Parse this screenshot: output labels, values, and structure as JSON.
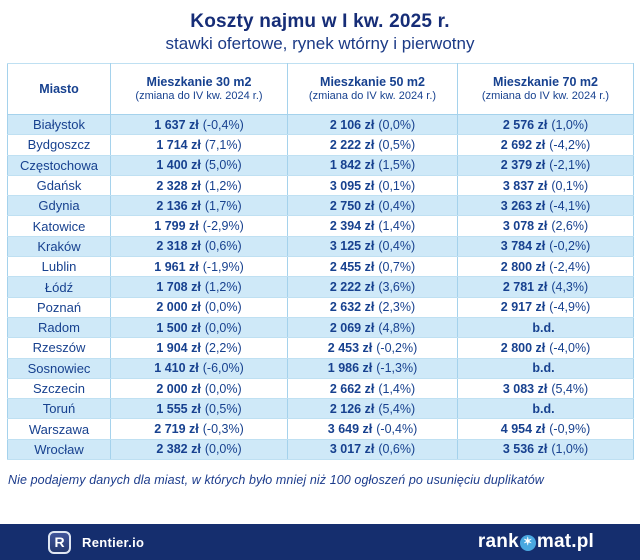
{
  "header": {
    "title": "Koszty najmu w I kw. 2025 r.",
    "subtitle": "stawki ofertowe, rynek wtórny i pierwotny"
  },
  "chart_data": {
    "type": "table",
    "title": "Koszty najmu w I kw. 2025 r.",
    "subtitle": "stawki ofertowe, rynek wtórny i pierwotny",
    "columns": [
      {
        "label": "Miasto",
        "sublabel": ""
      },
      {
        "label": "Mieszkanie 30 m2",
        "sublabel": "(zmiana do IV kw. 2024 r.)"
      },
      {
        "label": "Mieszkanie 50 m2",
        "sublabel": "(zmiana do IV kw. 2024 r.)"
      },
      {
        "label": "Mieszkanie 70 m2",
        "sublabel": "(zmiana do IV kw. 2024 r.)"
      }
    ],
    "no_data_label": "b.d.",
    "rows": [
      {
        "city": "Białystok",
        "cells": [
          {
            "price": "1 637 zł",
            "change": "(-0,4%)"
          },
          {
            "price": "2 106 zł",
            "change": "(0,0%)"
          },
          {
            "price": "2 576 zł",
            "change": "(1,0%)"
          }
        ]
      },
      {
        "city": "Bydgoszcz",
        "cells": [
          {
            "price": "1 714 zł",
            "change": "(7,1%)"
          },
          {
            "price": "2 222 zł",
            "change": "(0,5%)"
          },
          {
            "price": "2 692 zł",
            "change": "(-4,2%)"
          }
        ]
      },
      {
        "city": "Częstochowa",
        "cells": [
          {
            "price": "1 400 zł",
            "change": "(5,0%)"
          },
          {
            "price": "1 842 zł",
            "change": "(1,5%)"
          },
          {
            "price": "2 379 zł",
            "change": "(-2,1%)"
          }
        ]
      },
      {
        "city": "Gdańsk",
        "cells": [
          {
            "price": "2 328 zł",
            "change": "(1,2%)"
          },
          {
            "price": "3 095 zł",
            "change": "(0,1%)"
          },
          {
            "price": "3 837 zł",
            "change": "(0,1%)"
          }
        ]
      },
      {
        "city": "Gdynia",
        "cells": [
          {
            "price": "2 136 zł",
            "change": "(1,7%)"
          },
          {
            "price": "2 750 zł",
            "change": "(0,4%)"
          },
          {
            "price": "3 263 zł",
            "change": "(-4,1%)"
          }
        ]
      },
      {
        "city": "Katowice",
        "cells": [
          {
            "price": "1 799 zł",
            "change": "(-2,9%)"
          },
          {
            "price": "2 394 zł",
            "change": "(1,4%)"
          },
          {
            "price": "3 078 zł",
            "change": "(2,6%)"
          }
        ]
      },
      {
        "city": "Kraków",
        "cells": [
          {
            "price": "2 318 zł",
            "change": "(0,6%)"
          },
          {
            "price": "3 125 zł",
            "change": "(0,4%)"
          },
          {
            "price": "3 784 zł",
            "change": "(-0,2%)"
          }
        ]
      },
      {
        "city": "Lublin",
        "cells": [
          {
            "price": "1 961 zł",
            "change": "(-1,9%)"
          },
          {
            "price": "2 455 zł",
            "change": "(0,7%)"
          },
          {
            "price": "2 800 zł",
            "change": "(-2,4%)"
          }
        ]
      },
      {
        "city": "Łódź",
        "cells": [
          {
            "price": "1 708 zł",
            "change": "(1,2%)"
          },
          {
            "price": "2 222 zł",
            "change": "(3,6%)"
          },
          {
            "price": "2 781 zł",
            "change": "(4,3%)"
          }
        ]
      },
      {
        "city": "Poznań",
        "cells": [
          {
            "price": "2 000 zł",
            "change": "(0,0%)"
          },
          {
            "price": "2 632 zł",
            "change": "(2,3%)"
          },
          {
            "price": "2 917 zł",
            "change": "(-4,9%)"
          }
        ]
      },
      {
        "city": "Radom",
        "cells": [
          {
            "price": "1 500 zł",
            "change": "(0,0%)"
          },
          {
            "price": "2 069 zł",
            "change": "(4,8%)"
          },
          {
            "price": "b.d.",
            "change": ""
          }
        ]
      },
      {
        "city": "Rzeszów",
        "cells": [
          {
            "price": "1 904 zł",
            "change": "(2,2%)"
          },
          {
            "price": "2 453 zł",
            "change": "(-0,2%)"
          },
          {
            "price": "2 800 zł",
            "change": "(-4,0%)"
          }
        ]
      },
      {
        "city": "Sosnowiec",
        "cells": [
          {
            "price": "1 410 zł",
            "change": "(-6,0%)"
          },
          {
            "price": "1 986 zł",
            "change": "(-1,3%)"
          },
          {
            "price": "b.d.",
            "change": ""
          }
        ]
      },
      {
        "city": "Szczecin",
        "cells": [
          {
            "price": "2 000 zł",
            "change": "(0,0%)"
          },
          {
            "price": "2 662 zł",
            "change": "(1,4%)"
          },
          {
            "price": "3 083 zł",
            "change": "(5,4%)"
          }
        ]
      },
      {
        "city": "Toruń",
        "cells": [
          {
            "price": "1 555 zł",
            "change": "(0,5%)"
          },
          {
            "price": "2 126 zł",
            "change": "(5,4%)"
          },
          {
            "price": "b.d.",
            "change": ""
          }
        ]
      },
      {
        "city": "Warszawa",
        "cells": [
          {
            "price": "2 719 zł",
            "change": "(-0,3%)"
          },
          {
            "price": "3 649 zł",
            "change": "(-0,4%)"
          },
          {
            "price": "4 954 zł",
            "change": "(-0,9%)"
          }
        ]
      },
      {
        "city": "Wrocław",
        "cells": [
          {
            "price": "2 382 zł",
            "change": "(0,0%)"
          },
          {
            "price": "3 017 zł",
            "change": "(0,6%)"
          },
          {
            "price": "3 536 zł",
            "change": "(1,0%)"
          }
        ]
      }
    ]
  },
  "footnote": "Nie podajemy danych dla miast, w których było mniej niż 100 ogłoszeń po usunięciu duplikatów",
  "footer": {
    "rentier": {
      "icon_letter": "R",
      "label": "Rentier.io"
    },
    "rankomat": {
      "prefix": "rank",
      "suffix": "mat.pl",
      "icon_glyph": "✶"
    }
  },
  "colors": {
    "navy_title": "#162d77",
    "navy_text": "#17418f",
    "row_stripe": "#cfe9f8",
    "table_border": "#a5d2ec",
    "footer_bar": "#152e6e",
    "rankomat_icon_blue": "#4aa8e0"
  }
}
